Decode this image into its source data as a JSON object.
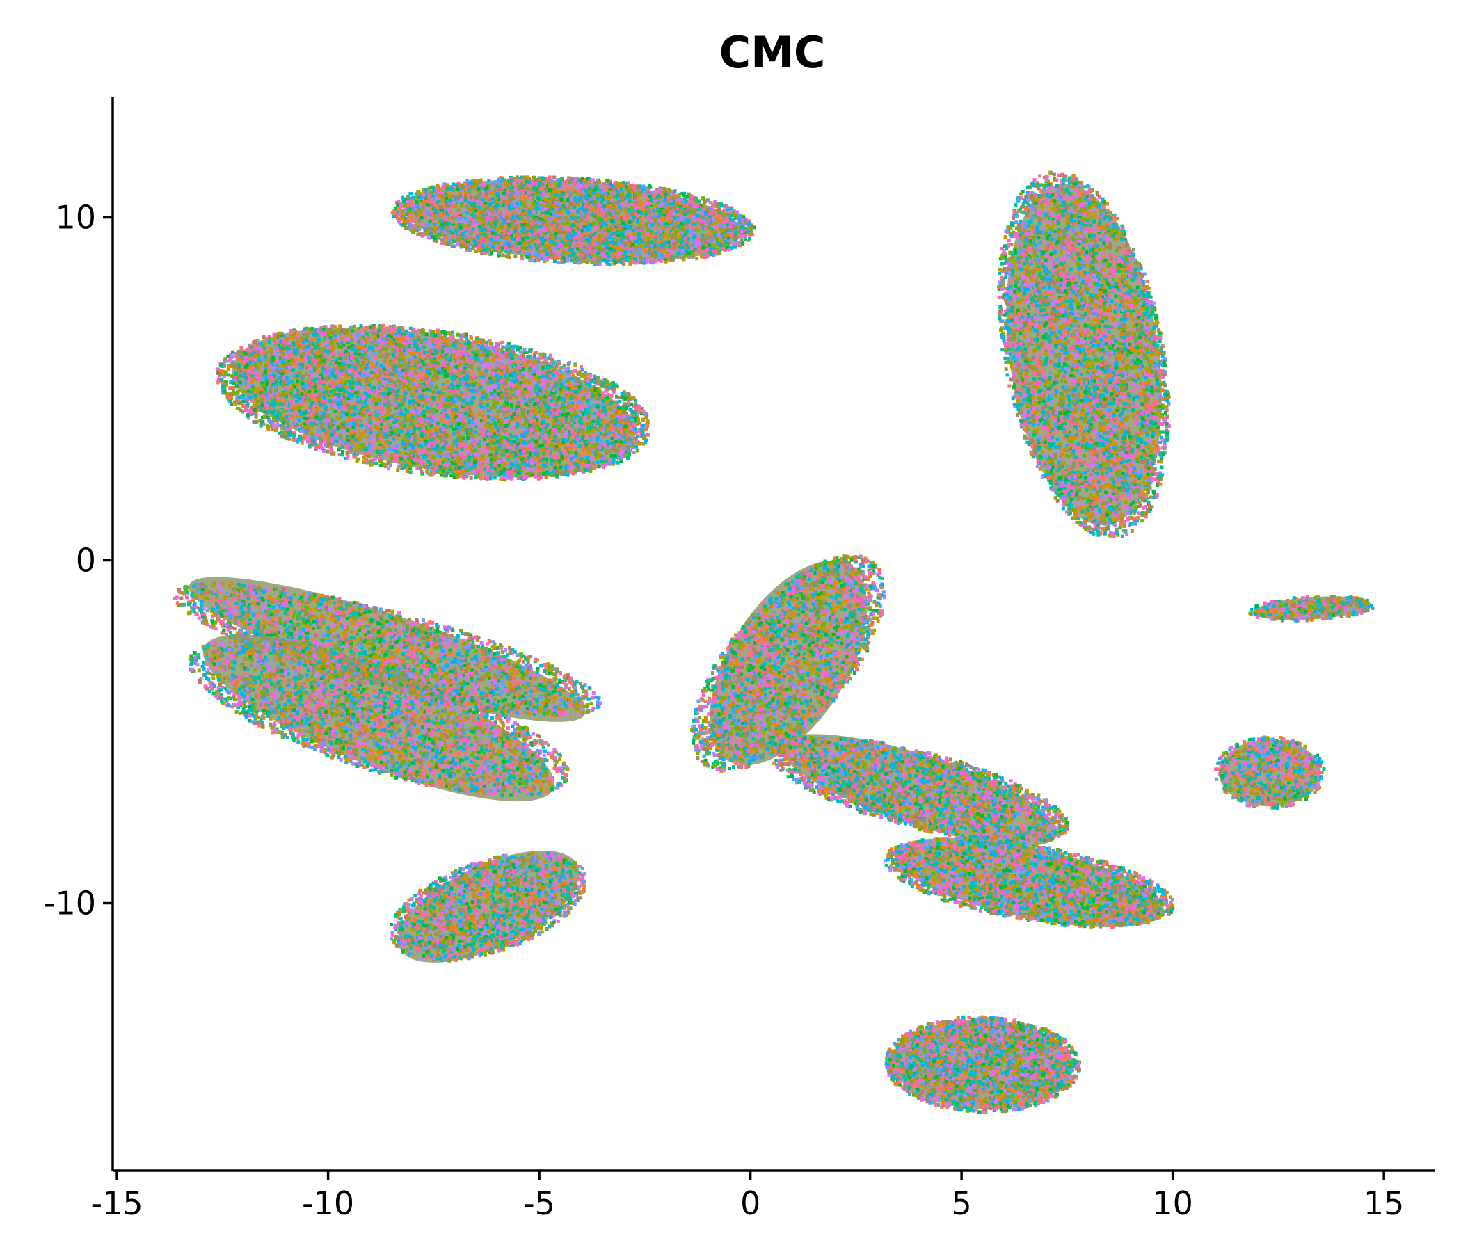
{
  "chart_data": {
    "type": "scatter",
    "title": "CMC",
    "xlabel": "",
    "ylabel": "",
    "xlim": [
      -15.1,
      16.2
    ],
    "ylim": [
      -17.8,
      13.5
    ],
    "xticks": [
      -15,
      -10,
      -5,
      0,
      5,
      10,
      15
    ],
    "yticks": [
      -10,
      0,
      10
    ],
    "xtick_labels": [
      "-15",
      "-10",
      "-5",
      "0",
      "5",
      "10",
      "15"
    ],
    "ytick_labels": [
      "-10",
      "0",
      "10"
    ],
    "grid": false,
    "legend": "none",
    "point_colors": [
      "#f8766d",
      "#de8c00",
      "#b79f00",
      "#7cae00",
      "#00ba38",
      "#00c08b",
      "#00bfc4",
      "#00b4f0",
      "#619cff",
      "#c77cff",
      "#f564e3",
      "#ff64b0",
      "#8a9a5b",
      "#b08060"
    ],
    "clusters": [
      {
        "center": [
          -4.2,
          9.9
        ],
        "spread": [
          4.3,
          1.25
        ],
        "rotation_deg": -4,
        "points": 4200
      },
      {
        "center": [
          -7.5,
          4.6
        ],
        "spread": [
          5.2,
          2.1
        ],
        "rotation_deg": -10,
        "points": 6500
      },
      {
        "center": [
          -8.6,
          -2.6
        ],
        "spread": [
          5.3,
          1.1
        ],
        "rotation_deg": -18,
        "points": 2600
      },
      {
        "center": [
          -8.8,
          -4.6
        ],
        "spread": [
          4.8,
          1.5
        ],
        "rotation_deg": -22,
        "points": 3200
      },
      {
        "center": [
          -6.2,
          -10.1
        ],
        "spread": [
          2.5,
          1.3
        ],
        "rotation_deg": 25,
        "points": 1800
      },
      {
        "center": [
          0.9,
          -3.0
        ],
        "spread": [
          1.5,
          3.6
        ],
        "rotation_deg": -32,
        "points": 2600
      },
      {
        "center": [
          7.9,
          6.0
        ],
        "spread": [
          1.9,
          5.4
        ],
        "rotation_deg": 8,
        "points": 5000
      },
      {
        "center": [
          4.0,
          -6.7
        ],
        "spread": [
          3.7,
          1.1
        ],
        "rotation_deg": -18,
        "points": 2500
      },
      {
        "center": [
          6.6,
          -9.4
        ],
        "spread": [
          3.5,
          1.1
        ],
        "rotation_deg": -12,
        "points": 2500
      },
      {
        "center": [
          5.5,
          -14.7
        ],
        "spread": [
          2.3,
          1.4
        ],
        "rotation_deg": -2,
        "points": 2500
      },
      {
        "center": [
          12.3,
          -6.2
        ],
        "spread": [
          1.3,
          1.05
        ],
        "rotation_deg": 0,
        "points": 700
      },
      {
        "center": [
          13.3,
          -1.4
        ],
        "spread": [
          1.5,
          0.35
        ],
        "rotation_deg": 4,
        "points": 350
      }
    ]
  }
}
